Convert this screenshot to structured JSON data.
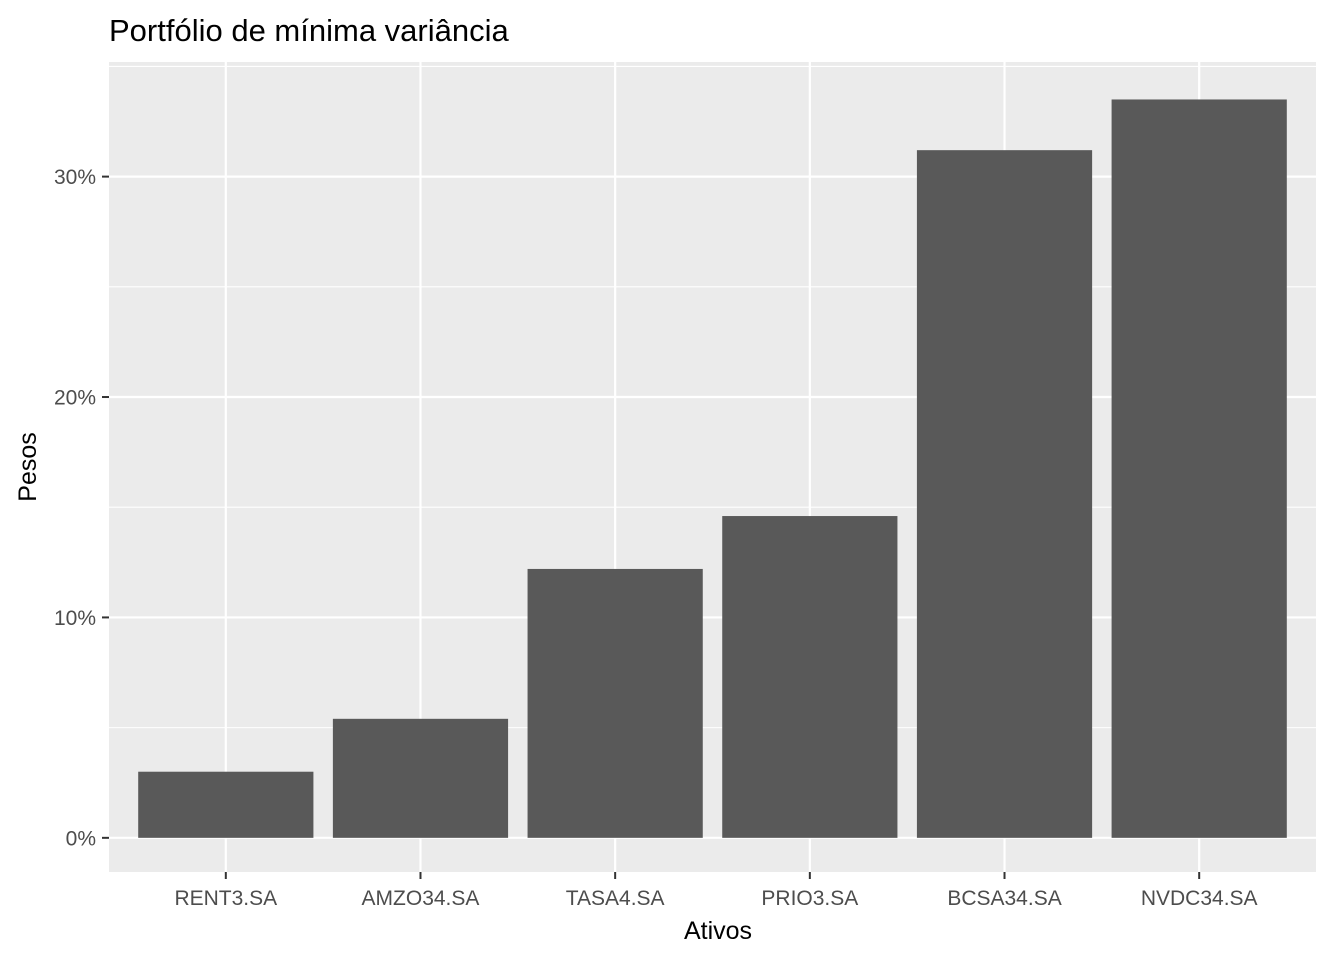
{
  "chart_data": {
    "type": "bar",
    "title": "Portfólio de mínima variância",
    "xlabel": "Ativos",
    "ylabel": "Pesos",
    "categories": [
      "RENT3.SA",
      "AMZO34.SA",
      "TASA4.SA",
      "PRIO3.SA",
      "BCSA34.SA",
      "NVDC34.SA"
    ],
    "values": [
      0.03,
      0.054,
      0.122,
      0.146,
      0.312,
      0.335
    ],
    "ylim": [
      -0.0155,
      0.352
    ],
    "yticks": [
      0,
      0.1,
      0.2,
      0.3
    ],
    "ytick_labels": [
      "0%",
      "10%",
      "20%",
      "30%"
    ],
    "grid": true,
    "legend": "none",
    "colors": {
      "bar": "#595959",
      "panel": "#ebebeb",
      "grid": "#ffffff",
      "tick_text": "#4d4d4d",
      "tick_mark": "#333333"
    }
  }
}
